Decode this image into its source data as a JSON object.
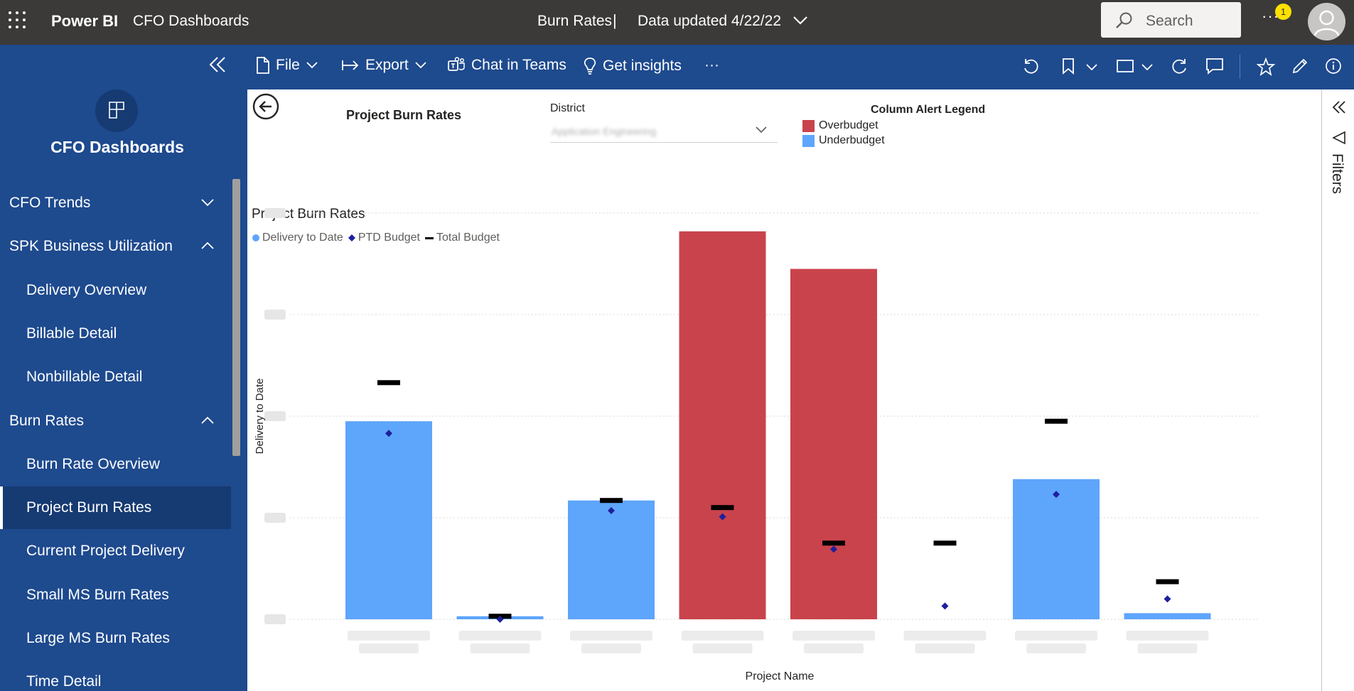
{
  "app": {
    "brand": "Power BI",
    "workspace": "CFO Dashboards",
    "report_title": "Burn Rates",
    "separator": "|",
    "data_updated": "Data updated 4/22/22",
    "search_placeholder": "Search",
    "notification_count": "1",
    "more_label": "···"
  },
  "actions": {
    "file": "File",
    "export": "Export",
    "chat": "Chat in Teams",
    "insights": "Get insights",
    "more": "···"
  },
  "sidebar": {
    "workspace_name": "CFO Dashboards",
    "items": [
      {
        "label": "CFO Trends",
        "type": "group",
        "expanded": false
      },
      {
        "label": "SPK Business Utilization",
        "type": "group",
        "expanded": true
      },
      {
        "label": "Delivery Overview",
        "type": "page"
      },
      {
        "label": "Billable Detail",
        "type": "page"
      },
      {
        "label": "Nonbillable Detail",
        "type": "page"
      },
      {
        "label": "Burn Rates",
        "type": "group",
        "expanded": true
      },
      {
        "label": "Burn Rate Overview",
        "type": "page"
      },
      {
        "label": "Project Burn Rates",
        "type": "page",
        "active": true
      },
      {
        "label": "Current Project Delivery",
        "type": "page"
      },
      {
        "label": "Small MS Burn Rates",
        "type": "page"
      },
      {
        "label": "Large MS Burn Rates",
        "type": "page"
      },
      {
        "label": "Time Detail",
        "type": "page"
      }
    ]
  },
  "page": {
    "title": "Project Burn Rates",
    "district_label": "District",
    "district_value": "Application Engineering",
    "legend_title": "Column Alert Legend",
    "legend_over": "Overbudget",
    "legend_under": "Underbudget",
    "filters_label": "Filters"
  },
  "colors": {
    "overbudget": "#c9434c",
    "underbudget": "#5ea5fc",
    "ptd_marker": "#1f1f9e",
    "total_marker": "#000000",
    "topbar": "#3b3a39",
    "nav": "#1e4a8e",
    "nav_active": "#163a72"
  },
  "chart_data": {
    "type": "bar",
    "title": "Project Burn Rates",
    "xlabel": "Project Name",
    "ylabel": "Delivery to Date",
    "legend_position": "top-left",
    "grid": true,
    "series_names": [
      "Delivery to Date",
      "PTD Budget",
      "Total Budget"
    ],
    "categories": [
      "",
      "",
      "",
      "",
      "",
      "",
      "",
      ""
    ],
    "ylim": [
      0,
      4
    ],
    "series": [
      {
        "name": "Delivery to Date",
        "values": [
          1.95,
          0.03,
          1.17,
          3.82,
          3.45,
          0.0,
          1.38,
          0.06
        ]
      },
      {
        "name": "PTD Budget",
        "values": [
          1.83,
          0.0,
          1.07,
          1.01,
          0.69,
          0.13,
          1.23,
          0.2
        ]
      },
      {
        "name": "Total Budget",
        "values": [
          2.33,
          0.03,
          1.17,
          1.1,
          0.75,
          0.75,
          1.95,
          0.37
        ]
      }
    ],
    "alert": [
      "under",
      "under",
      "under",
      "over",
      "over",
      "under",
      "under",
      "under"
    ]
  }
}
